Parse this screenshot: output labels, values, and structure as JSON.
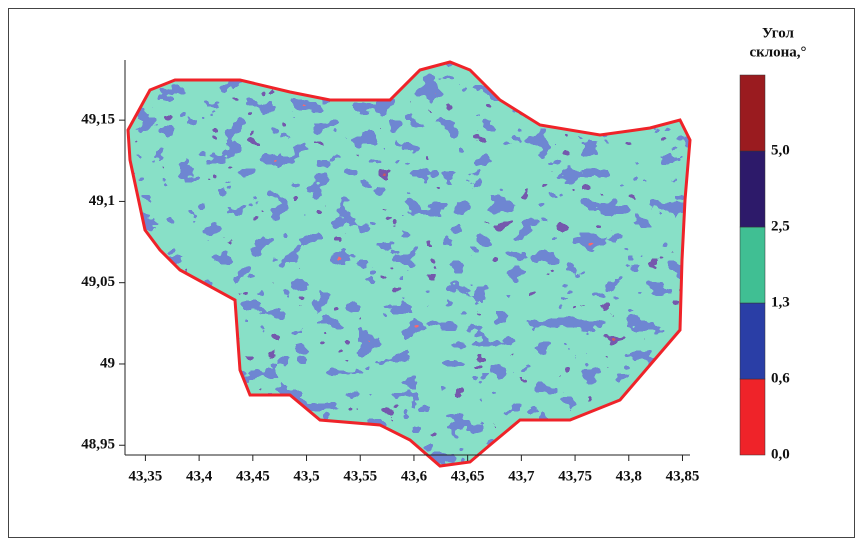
{
  "map": {
    "xlim": [
      43.331,
      43.857
    ],
    "ylim": [
      48.944,
      49.187
    ],
    "xticks": [
      {
        "value": 43.35,
        "label": "43,35"
      },
      {
        "value": 43.4,
        "label": "43,4"
      },
      {
        "value": 43.45,
        "label": "43,45"
      },
      {
        "value": 43.5,
        "label": "43,5"
      },
      {
        "value": 43.55,
        "label": "43,55"
      },
      {
        "value": 43.6,
        "label": "43,6"
      },
      {
        "value": 43.65,
        "label": "43,65"
      },
      {
        "value": 43.7,
        "label": "43,7"
      },
      {
        "value": 43.75,
        "label": "43,75"
      },
      {
        "value": 43.8,
        "label": "43,8"
      },
      {
        "value": 43.85,
        "label": "43,85"
      }
    ],
    "yticks": [
      {
        "value": 48.95,
        "label": "48,95"
      },
      {
        "value": 49,
        "label": "49"
      },
      {
        "value": 49.05,
        "label": "49,05"
      },
      {
        "value": 49.1,
        "label": "49,1"
      },
      {
        "value": 49.15,
        "label": "49,15"
      }
    ],
    "legend": {
      "title_lines": [
        "Угол",
        "склона,°"
      ],
      "breaks": [
        {
          "value": 0,
          "label": "0,0"
        },
        {
          "value": 0.6,
          "label": "0,6"
        },
        {
          "value": 1.3,
          "label": "1,3"
        },
        {
          "value": 2.5,
          "label": "2,5"
        },
        {
          "value": 5,
          "label": "5,0"
        }
      ],
      "colors": [
        "#ef2329",
        "#2a3ea6",
        "#40bf93",
        "#2d1a6a",
        "#9a1b1f"
      ]
    }
  }
}
